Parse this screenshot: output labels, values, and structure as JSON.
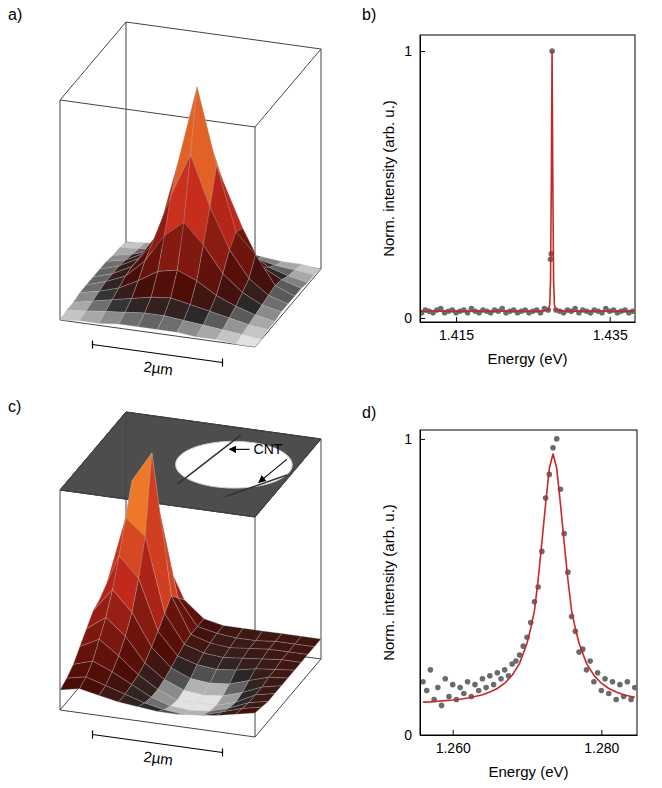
{
  "chart_data": [
    {
      "type": "surface",
      "panel": "a)",
      "tick_labels": false,
      "x": [
        0,
        0.3,
        0.6,
        0.9,
        1.2,
        1.5,
        1.8,
        2.1,
        2.4,
        2.7,
        3.0
      ],
      "y": [
        0,
        0.3,
        0.6,
        0.9,
        1.2,
        1.5,
        1.8,
        2.1,
        2.4,
        2.7,
        3.0
      ],
      "xlim": [
        0,
        3
      ],
      "ylim": [
        0,
        3
      ],
      "zlim": [
        0,
        1.1
      ],
      "z": [
        [
          0.0,
          0.01,
          0.01,
          0.02,
          0.02,
          0.02,
          0.02,
          0.01,
          0.01,
          0.0,
          0.0
        ],
        [
          0.01,
          0.02,
          0.03,
          0.04,
          0.05,
          0.05,
          0.04,
          0.03,
          0.02,
          0.01,
          0.0
        ],
        [
          0.01,
          0.03,
          0.05,
          0.07,
          0.09,
          0.1,
          0.08,
          0.06,
          0.04,
          0.02,
          0.01
        ],
        [
          0.02,
          0.04,
          0.07,
          0.12,
          0.18,
          0.2,
          0.16,
          0.1,
          0.06,
          0.03,
          0.01
        ],
        [
          0.02,
          0.05,
          0.09,
          0.18,
          0.32,
          0.4,
          0.3,
          0.17,
          0.09,
          0.04,
          0.02
        ],
        [
          0.02,
          0.05,
          0.1,
          0.22,
          0.48,
          0.7,
          0.45,
          0.25,
          0.12,
          0.05,
          0.02
        ],
        [
          0.02,
          0.05,
          0.1,
          0.24,
          0.6,
          1.0,
          0.62,
          0.3,
          0.2,
          0.06,
          0.02
        ],
        [
          0.02,
          0.04,
          0.09,
          0.2,
          0.45,
          0.78,
          0.5,
          0.28,
          0.1,
          0.05,
          0.02
        ],
        [
          0.01,
          0.03,
          0.06,
          0.12,
          0.22,
          0.3,
          0.24,
          0.12,
          0.06,
          0.03,
          0.01
        ],
        [
          0.01,
          0.02,
          0.03,
          0.05,
          0.08,
          0.1,
          0.08,
          0.05,
          0.03,
          0.02,
          0.01
        ],
        [
          0.0,
          0.01,
          0.02,
          0.02,
          0.03,
          0.03,
          0.03,
          0.02,
          0.01,
          0.01,
          0.0
        ]
      ],
      "scale_bar": {
        "length": 2,
        "label": "2µm"
      }
    },
    {
      "type": "line",
      "panel": "b)",
      "x_label": "Energy (eV)",
      "y_label": "Norm. intensity (arb. u.)",
      "xlim": [
        1.4103,
        1.4383
      ],
      "ylim": [
        -0.015,
        1.06
      ],
      "xticks": [
        1.415,
        1.435
      ],
      "yticks": [
        0,
        1
      ],
      "series": [
        {
          "type": "scatter",
          "color": "#6b6b6b",
          "marker": "circle",
          "x": [
            1.4105,
            1.411,
            1.4115,
            1.412,
            1.4125,
            1.413,
            1.4135,
            1.414,
            1.4145,
            1.415,
            1.4155,
            1.416,
            1.4165,
            1.417,
            1.4175,
            1.418,
            1.4185,
            1.419,
            1.4195,
            1.42,
            1.4205,
            1.421,
            1.4215,
            1.422,
            1.4225,
            1.423,
            1.4235,
            1.424,
            1.4245,
            1.425,
            1.4255,
            1.426,
            1.4265,
            1.427,
            1.4273,
            1.4274,
            1.4275,
            1.428,
            1.4285,
            1.429,
            1.4295,
            1.43,
            1.4305,
            1.431,
            1.4315,
            1.432,
            1.4325,
            1.433,
            1.4335,
            1.434,
            1.4345,
            1.435,
            1.4355,
            1.436,
            1.4365,
            1.437,
            1.4375,
            1.438
          ],
          "values": [
            0.02,
            0.03,
            0.025,
            0.02,
            0.03,
            0.035,
            0.02,
            0.025,
            0.03,
            0.02,
            0.025,
            0.03,
            0.02,
            0.035,
            0.025,
            0.02,
            0.03,
            0.025,
            0.02,
            0.03,
            0.025,
            0.035,
            0.02,
            0.025,
            0.03,
            0.02,
            0.025,
            0.03,
            0.02,
            0.025,
            0.03,
            0.02,
            0.035,
            0.03,
            0.22,
            0.24,
            1.0,
            0.03,
            0.025,
            0.02,
            0.03,
            0.025,
            0.035,
            0.02,
            0.03,
            0.025,
            0.02,
            0.03,
            0.025,
            0.02,
            0.035,
            0.025,
            0.03,
            0.02,
            0.025,
            0.03,
            0.02,
            0.025
          ]
        },
        {
          "type": "line",
          "color": "#c62828",
          "line_style": "solid",
          "x": [
            1.4103,
            1.426,
            1.427,
            1.4272,
            1.4273,
            1.4274,
            1.4275,
            1.4276,
            1.4277,
            1.4278,
            1.428,
            1.429,
            1.4383
          ],
          "values": [
            0.025,
            0.025,
            0.03,
            0.05,
            0.14,
            0.5,
            1.0,
            0.5,
            0.14,
            0.05,
            0.03,
            0.025,
            0.025
          ]
        }
      ]
    },
    {
      "type": "surface",
      "panel": "c)",
      "tick_labels": false,
      "x": [
        0,
        0.3,
        0.6,
        0.9,
        1.2,
        1.5,
        1.8,
        2.1,
        2.4,
        2.7,
        3.0
      ],
      "y": [
        0,
        0.3,
        0.6,
        0.9,
        1.2,
        1.5,
        1.8,
        2.1,
        2.4,
        2.7,
        3.0
      ],
      "xlim": [
        0,
        3
      ],
      "ylim": [
        0,
        3
      ],
      "zlim": [
        0,
        1.1
      ],
      "z": [
        [
          0.1,
          0.12,
          0.1,
          0.08,
          0.07,
          0.06,
          0.06,
          0.07,
          0.08,
          0.1,
          0.12
        ],
        [
          0.12,
          0.14,
          0.11,
          0.08,
          0.05,
          0.03,
          0.02,
          0.03,
          0.06,
          0.09,
          0.11
        ],
        [
          0.15,
          0.18,
          0.14,
          0.09,
          0.04,
          0.01,
          0.0,
          0.01,
          0.04,
          0.08,
          0.1
        ],
        [
          0.2,
          0.25,
          0.18,
          0.1,
          0.04,
          0.0,
          0.0,
          0.0,
          0.03,
          0.08,
          0.1
        ],
        [
          0.25,
          0.32,
          0.24,
          0.12,
          0.05,
          0.01,
          0.0,
          0.01,
          0.04,
          0.08,
          0.1
        ],
        [
          0.3,
          0.42,
          0.32,
          0.16,
          0.07,
          0.03,
          0.02,
          0.03,
          0.06,
          0.09,
          0.1
        ],
        [
          0.32,
          0.55,
          0.45,
          0.2,
          0.09,
          0.06,
          0.05,
          0.06,
          0.08,
          0.09,
          0.1
        ],
        [
          0.35,
          0.7,
          0.62,
          0.25,
          0.11,
          0.08,
          0.07,
          0.08,
          0.09,
          0.1,
          0.1
        ],
        [
          0.3,
          0.85,
          1.0,
          0.3,
          0.12,
          0.09,
          0.08,
          0.09,
          0.1,
          0.1,
          0.1
        ],
        [
          0.25,
          0.6,
          0.7,
          0.25,
          0.12,
          0.1,
          0.09,
          0.09,
          0.1,
          0.1,
          0.1
        ],
        [
          0.2,
          0.35,
          0.4,
          0.2,
          0.12,
          0.1,
          0.1,
          0.1,
          0.1,
          0.1,
          0.1
        ]
      ],
      "scale_bar": {
        "length": 2,
        "label": "2µm"
      },
      "annotations": [
        {
          "text": "CNT"
        }
      ]
    },
    {
      "type": "line",
      "panel": "d)",
      "x_label": "Energy (eV)",
      "y_label": "Norm. intensity (arb. u.)",
      "xlim": [
        1.2556,
        1.2848
      ],
      "ylim": [
        0,
        1.03
      ],
      "xticks": [
        {
          "value": 1.26,
          "label": "1.260"
        },
        {
          "value": 1.28,
          "label": "1.280"
        }
      ],
      "yticks": [
        0,
        1
      ],
      "series": [
        {
          "type": "scatter",
          "color": "#6b6b6b",
          "marker": "circle",
          "x": [
            1.256,
            1.2565,
            1.257,
            1.2575,
            1.258,
            1.2585,
            1.259,
            1.2595,
            1.26,
            1.2605,
            1.261,
            1.2615,
            1.262,
            1.2625,
            1.263,
            1.2635,
            1.264,
            1.2645,
            1.265,
            1.2655,
            1.266,
            1.2665,
            1.267,
            1.2675,
            1.268,
            1.2685,
            1.269,
            1.2695,
            1.27,
            1.2705,
            1.271,
            1.2715,
            1.272,
            1.2725,
            1.273,
            1.2735,
            1.274,
            1.2745,
            1.275,
            1.2755,
            1.276,
            1.2765,
            1.277,
            1.2775,
            1.278,
            1.2785,
            1.279,
            1.2795,
            1.28,
            1.2805,
            1.281,
            1.2815,
            1.282,
            1.2825,
            1.283,
            1.2835,
            1.284,
            1.2845
          ],
          "values": [
            0.18,
            0.15,
            0.22,
            0.12,
            0.16,
            0.1,
            0.19,
            0.13,
            0.17,
            0.12,
            0.16,
            0.14,
            0.18,
            0.13,
            0.17,
            0.15,
            0.19,
            0.16,
            0.2,
            0.17,
            0.21,
            0.19,
            0.22,
            0.2,
            0.24,
            0.25,
            0.27,
            0.3,
            0.33,
            0.38,
            0.45,
            0.5,
            0.62,
            0.8,
            0.88,
            0.97,
            1.0,
            0.83,
            0.68,
            0.55,
            0.4,
            0.35,
            0.28,
            0.29,
            0.22,
            0.25,
            0.18,
            0.21,
            0.15,
            0.19,
            0.14,
            0.18,
            0.12,
            0.17,
            0.13,
            0.18,
            0.12,
            0.16
          ]
        },
        {
          "type": "line",
          "color": "#c62828",
          "line_style": "solid",
          "x": [
            1.256,
            1.257,
            1.258,
            1.259,
            1.26,
            1.261,
            1.262,
            1.263,
            1.264,
            1.265,
            1.266,
            1.267,
            1.268,
            1.269,
            1.27,
            1.2705,
            1.271,
            1.2715,
            1.272,
            1.2725,
            1.273,
            1.2735,
            1.274,
            1.2745,
            1.275,
            1.2755,
            1.276,
            1.2765,
            1.277,
            1.278,
            1.279,
            1.28,
            1.281,
            1.282,
            1.283,
            1.284,
            1.2845
          ],
          "values": [
            0.111,
            0.112,
            0.114,
            0.116,
            0.118,
            0.121,
            0.125,
            0.13,
            0.136,
            0.145,
            0.157,
            0.175,
            0.202,
            0.242,
            0.31,
            0.36,
            0.42,
            0.525,
            0.65,
            0.78,
            0.9,
            0.95,
            0.9,
            0.78,
            0.65,
            0.525,
            0.42,
            0.36,
            0.31,
            0.242,
            0.202,
            0.175,
            0.157,
            0.145,
            0.136,
            0.13,
            0.127
          ]
        }
      ]
    }
  ]
}
